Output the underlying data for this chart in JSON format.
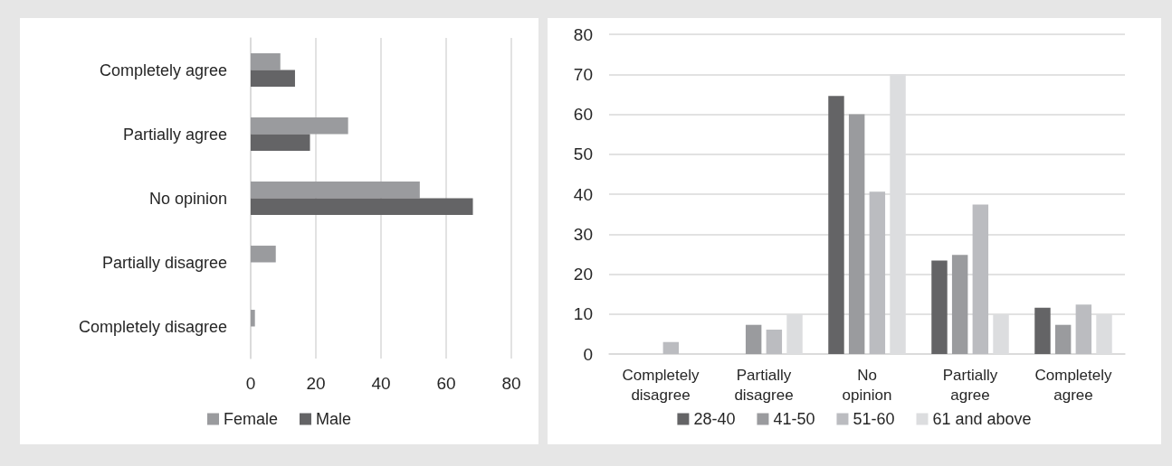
{
  "chart_data": [
    {
      "type": "bar",
      "orientation": "horizontal",
      "categories": [
        "Completely agree",
        "Partially agree",
        "No opinion",
        "Partially disagree",
        "Completely disagree"
      ],
      "series": [
        {
          "name": "Female",
          "color": "#9a9b9e",
          "values": [
            9.1,
            29.9,
            51.9,
            7.7,
            1.3
          ]
        },
        {
          "name": "Male",
          "color": "#646466",
          "values": [
            13.6,
            18.2,
            68.2,
            0,
            0
          ]
        }
      ],
      "xlim": [
        0,
        80
      ],
      "xticks": [
        0,
        20,
        40,
        60,
        80
      ],
      "grid": "x",
      "legend": "bottom"
    },
    {
      "type": "bar",
      "categories": [
        "Completely disagree",
        "Partially disagree",
        "No opinion",
        "Partially agree",
        "Completely agree"
      ],
      "series": [
        {
          "name": "28-40",
          "color": "#646466",
          "values": [
            0,
            0,
            64.6,
            23.4,
            11.6
          ]
        },
        {
          "name": "41-50",
          "color": "#9a9b9e",
          "values": [
            0,
            7.3,
            60,
            24.8,
            7.3
          ]
        },
        {
          "name": "51-60",
          "color": "#bbbcc0",
          "values": [
            3,
            6.1,
            40.6,
            37.4,
            12.4
          ]
        },
        {
          "name": "61 and above",
          "color": "#dcdddf",
          "values": [
            0,
            10,
            70,
            10,
            10
          ]
        }
      ],
      "ylim": [
        0,
        80
      ],
      "yticks": [
        0,
        10,
        20,
        30,
        40,
        50,
        60,
        70,
        80
      ],
      "grid": "y",
      "legend": "bottom"
    }
  ]
}
